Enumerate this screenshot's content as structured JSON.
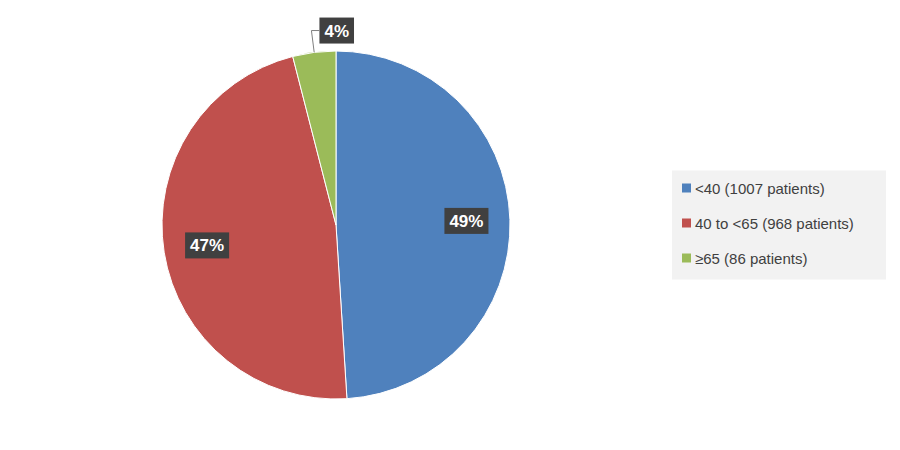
{
  "chart_data": {
    "type": "pie",
    "categories": [
      "<40 (1007 patients)",
      "40 to <65 (968 patients)",
      "≥65 (86 patients)"
    ],
    "values": [
      49,
      47,
      4
    ],
    "value_labels": [
      "49%",
      "47%",
      "4%"
    ],
    "colors": [
      "#4f81bd",
      "#c0504d",
      "#9bbb59"
    ],
    "data_labels": true,
    "legend": "right"
  }
}
